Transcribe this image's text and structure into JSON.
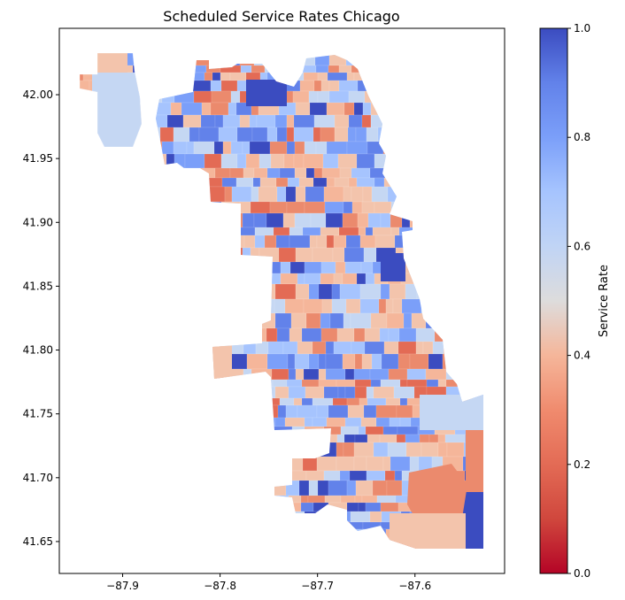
{
  "figure": {
    "title": "Scheduled Service Rates Chicago"
  },
  "map_axes": {
    "x_ticks": [
      {
        "value": -87.9,
        "label": "−87.9"
      },
      {
        "value": -87.8,
        "label": "−87.8"
      },
      {
        "value": -87.7,
        "label": "−87.7"
      },
      {
        "value": -87.6,
        "label": "−87.6"
      }
    ],
    "y_ticks": [
      {
        "value": 42.0,
        "label": "42.00"
      },
      {
        "value": 41.95,
        "label": "41.95"
      },
      {
        "value": 41.9,
        "label": "41.90"
      },
      {
        "value": 41.85,
        "label": "41.85"
      },
      {
        "value": 41.8,
        "label": "41.80"
      },
      {
        "value": 41.75,
        "label": "41.75"
      },
      {
        "value": 41.7,
        "label": "41.70"
      },
      {
        "value": 41.65,
        "label": "41.65"
      }
    ],
    "xlim": [
      -87.965,
      -87.508
    ],
    "ylim": [
      41.625,
      42.052
    ]
  },
  "colorbar": {
    "label": "Service Rate",
    "colormap": "coolwarm_r",
    "range": [
      0.0,
      1.0
    ],
    "ticks": [
      {
        "value": 0.0,
        "label": "0.0"
      },
      {
        "value": 0.2,
        "label": "0.2"
      },
      {
        "value": 0.4,
        "label": "0.4"
      },
      {
        "value": 0.6,
        "label": "0.6"
      },
      {
        "value": 0.8,
        "label": "0.8"
      },
      {
        "value": 1.0,
        "label": "1.0"
      }
    ],
    "low_color": "#b40426",
    "mid_color": "#dddddd",
    "high_color": "#3b4cc0"
  }
}
